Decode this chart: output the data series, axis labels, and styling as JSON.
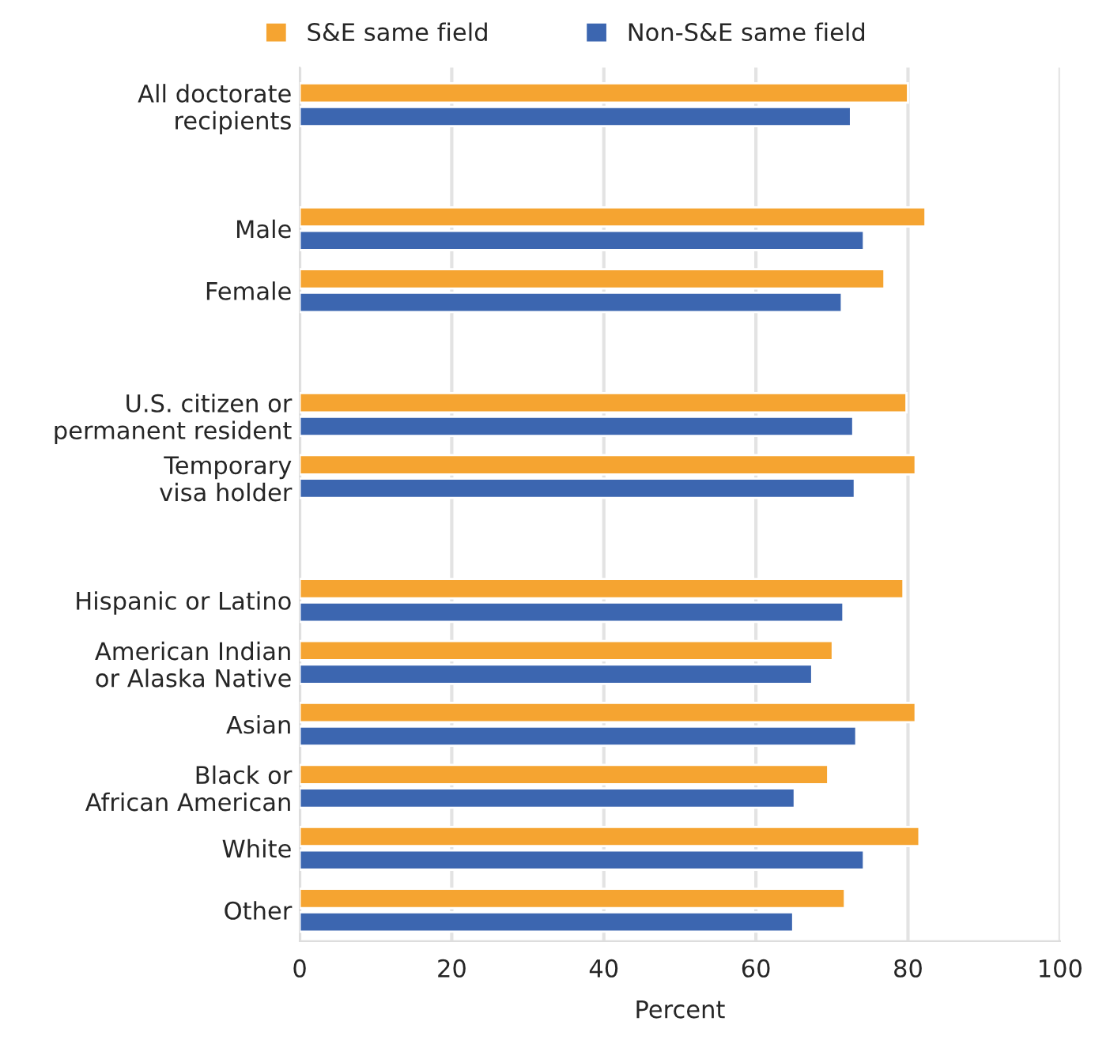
{
  "chart_data": {
    "type": "bar",
    "orientation": "horizontal",
    "xlabel": "Percent",
    "categories": [
      "All doctorate\nrecipients",
      null,
      "Male",
      "Female",
      null,
      "U.S. citizen or\npermanent resident",
      "Temporary\nvisa holder",
      null,
      "Hispanic or Latino",
      "American Indian\nor Alaska Native",
      "Asian",
      "Black or\nAfrican American",
      "White",
      "Other"
    ],
    "series": [
      {
        "name": "S&E same field",
        "color": "#f5a431",
        "values": [
          80.0,
          null,
          82.3,
          76.9,
          null,
          79.8,
          81.0,
          null,
          79.4,
          70.1,
          81.0,
          69.5,
          81.5,
          71.7
        ]
      },
      {
        "name": "Non-S&E same field",
        "color": "#3c66b0",
        "values": [
          72.5,
          null,
          74.2,
          71.3,
          null,
          72.8,
          73.0,
          null,
          71.5,
          67.4,
          73.2,
          65.1,
          74.2,
          64.9
        ]
      }
    ],
    "xlim": [
      0,
      100
    ],
    "xticks": [
      0,
      20,
      40,
      60,
      80,
      100
    ],
    "grid": "x",
    "legend": "top"
  }
}
